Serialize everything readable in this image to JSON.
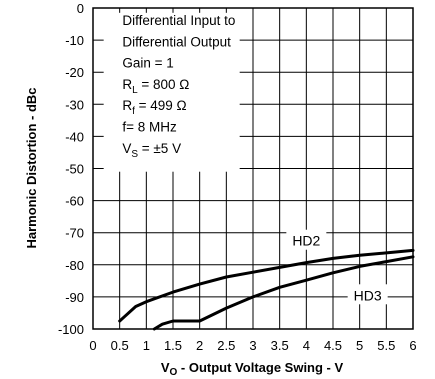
{
  "chart_data": {
    "type": "line",
    "xlabel": "V<sub>O</sub> - Output Voltage Swing - V",
    "xlabel_main": "V",
    "xlabel_sub": "O",
    "xlabel_rest": " - Output Voltage Swing - V",
    "ylabel": "Harmonic Distortion - dBc",
    "xlim": [
      0,
      6
    ],
    "ylim": [
      -100,
      0
    ],
    "x_ticks": [
      "0",
      "0.5",
      "1",
      "1.5",
      "2",
      "2.5",
      "3",
      "3.5",
      "4",
      "4.5",
      "5",
      "5.5",
      "6"
    ],
    "x_tick_values": [
      0,
      0.5,
      1,
      1.5,
      2,
      2.5,
      3,
      3.5,
      4,
      4.5,
      5,
      5.5,
      6
    ],
    "y_ticks": [
      "0",
      "-10",
      "-20",
      "-30",
      "-40",
      "-50",
      "-60",
      "-70",
      "-80",
      "-90",
      "-100"
    ],
    "y_tick_values": [
      0,
      -10,
      -20,
      -30,
      -40,
      -50,
      -60,
      -70,
      -80,
      -90,
      -100
    ],
    "grid": true,
    "conditions": [
      {
        "text": "Differential Input to"
      },
      {
        "text": "Differential Output"
      },
      {
        "text": "Gain = 1"
      },
      {
        "main": "R",
        "sub": "L",
        "rest": " = 800 Ω"
      },
      {
        "main": "R",
        "sub": "f",
        "rest": " = 499 Ω"
      },
      {
        "text": "f= 8 MHz"
      },
      {
        "main": "V",
        "sub": "S",
        "rest": " = ±5 V"
      }
    ],
    "series": [
      {
        "name": "HD2",
        "label_at": [
          4.0,
          -72.5
        ],
        "x": [
          0.5,
          0.6,
          0.8,
          1.0,
          1.5,
          2.0,
          2.5,
          3.0,
          3.5,
          4.0,
          4.5,
          5.0,
          5.5,
          6.0
        ],
        "y": [
          -97.5,
          -96,
          -93,
          -91.5,
          -88.5,
          -86,
          -83.8,
          -82.3,
          -80.8,
          -79.3,
          -78,
          -77,
          -76.3,
          -75.5
        ]
      },
      {
        "name": "HD3",
        "label_at": [
          5.15,
          -89.5
        ],
        "x": [
          1.15,
          1.3,
          1.5,
          2.0,
          2.5,
          3.0,
          3.5,
          4.0,
          4.5,
          5.0,
          5.5,
          6.0
        ],
        "y": [
          -100,
          -98.5,
          -97.5,
          -97.5,
          -93.5,
          -90,
          -87,
          -84.8,
          -82.5,
          -80.5,
          -79,
          -77.5
        ]
      }
    ]
  }
}
